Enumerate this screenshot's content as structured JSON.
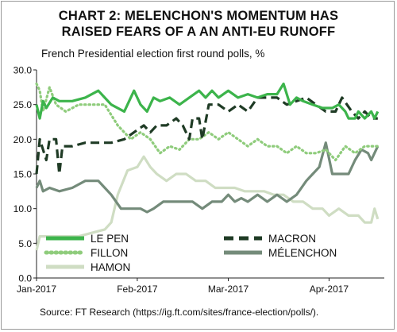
{
  "header": {
    "title_line1": "CHART 2: MELENCHON'S MOMENTUM HAS",
    "title_line2": "RAISED FEARS OF A AN ANTI-EU RUNOFF",
    "subtitle": "French Presidential election first round polls, %"
  },
  "footer": {
    "source": "Source: FT Research (https://ig.ft.com/sites/france-election/polls/)."
  },
  "chart_data": {
    "type": "line",
    "title": "CHART 2: MELENCHON'S MOMENTUM HAS RAISED FEARS OF A AN ANTI-EU RUNOFF",
    "subtitle": "French Presidential election first round polls, %",
    "xlabel": "",
    "ylabel": "",
    "ylim": [
      0,
      30
    ],
    "yticks": [
      "0.0",
      "5.0",
      "10.0",
      "15.0",
      "20.0",
      "25.0",
      "30.0"
    ],
    "xlim": [
      "2017-01-01",
      "2017-04-18"
    ],
    "xticks": [
      {
        "date": "2017-01-01",
        "label": "Jan-2017"
      },
      {
        "date": "2017-02-01",
        "label": "Feb-2017"
      },
      {
        "date": "2017-03-01",
        "label": "Mar-2017"
      },
      {
        "date": "2017-04-01",
        "label": "Apr-2017"
      }
    ],
    "grid": false,
    "legend": "bottom",
    "series": [
      {
        "name": "LE PEN",
        "color": "#3cb44b",
        "style": "solid",
        "points": [
          [
            "2017-01-01",
            25
          ],
          [
            "2017-01-02",
            23
          ],
          [
            "2017-01-03",
            25.5
          ],
          [
            "2017-01-04",
            24.5
          ],
          [
            "2017-01-06",
            26
          ],
          [
            "2017-01-08",
            25.5
          ],
          [
            "2017-01-12",
            25.5
          ],
          [
            "2017-01-16",
            26
          ],
          [
            "2017-01-20",
            27
          ],
          [
            "2017-01-24",
            25
          ],
          [
            "2017-01-28",
            24
          ],
          [
            "2017-01-31",
            27
          ],
          [
            "2017-02-02",
            25
          ],
          [
            "2017-02-04",
            24
          ],
          [
            "2017-02-06",
            26
          ],
          [
            "2017-02-08",
            25.5
          ],
          [
            "2017-02-11",
            26
          ],
          [
            "2017-02-14",
            25
          ],
          [
            "2017-02-17",
            26
          ],
          [
            "2017-02-20",
            27
          ],
          [
            "2017-02-22",
            26
          ],
          [
            "2017-02-24",
            27
          ],
          [
            "2017-02-26",
            26
          ],
          [
            "2017-03-01",
            27
          ],
          [
            "2017-03-04",
            26
          ],
          [
            "2017-03-07",
            26.5
          ],
          [
            "2017-03-10",
            26
          ],
          [
            "2017-03-13",
            26.5
          ],
          [
            "2017-03-16",
            26.5
          ],
          [
            "2017-03-18",
            28
          ],
          [
            "2017-03-20",
            25
          ],
          [
            "2017-03-22",
            26
          ],
          [
            "2017-03-24",
            25.5
          ],
          [
            "2017-03-27",
            25
          ],
          [
            "2017-03-30",
            24.5
          ],
          [
            "2017-04-02",
            24.5
          ],
          [
            "2017-04-04",
            25
          ],
          [
            "2017-04-06",
            24
          ],
          [
            "2017-04-07",
            23
          ],
          [
            "2017-04-09",
            23
          ],
          [
            "2017-04-10",
            24
          ],
          [
            "2017-04-12",
            23
          ],
          [
            "2017-04-14",
            24
          ],
          [
            "2017-04-15",
            23
          ],
          [
            "2017-04-16",
            24
          ]
        ]
      },
      {
        "name": "MACRON",
        "color": "#1f3b25",
        "style": "dashed",
        "points": [
          [
            "2017-01-01",
            15
          ],
          [
            "2017-01-02",
            20
          ],
          [
            "2017-01-04",
            17
          ],
          [
            "2017-01-05",
            20
          ],
          [
            "2017-01-07",
            20
          ],
          [
            "2017-01-08",
            15
          ],
          [
            "2017-01-09",
            19
          ],
          [
            "2017-01-12",
            19
          ],
          [
            "2017-01-16",
            19.5
          ],
          [
            "2017-01-20",
            19.5
          ],
          [
            "2017-01-24",
            19.5
          ],
          [
            "2017-01-28",
            20
          ],
          [
            "2017-01-31",
            21
          ],
          [
            "2017-02-03",
            22
          ],
          [
            "2017-02-05",
            21
          ],
          [
            "2017-02-07",
            22
          ],
          [
            "2017-02-10",
            22
          ],
          [
            "2017-02-13",
            23
          ],
          [
            "2017-02-15",
            22
          ],
          [
            "2017-02-17",
            20
          ],
          [
            "2017-02-18",
            23
          ],
          [
            "2017-02-20",
            23
          ],
          [
            "2017-02-21",
            20
          ],
          [
            "2017-02-23",
            25
          ],
          [
            "2017-02-26",
            25
          ],
          [
            "2017-03-01",
            24
          ],
          [
            "2017-03-04",
            25
          ],
          [
            "2017-03-07",
            24
          ],
          [
            "2017-03-10",
            26
          ],
          [
            "2017-03-13",
            26
          ],
          [
            "2017-03-16",
            26
          ],
          [
            "2017-03-19",
            25
          ],
          [
            "2017-03-22",
            25.5
          ],
          [
            "2017-03-25",
            26
          ],
          [
            "2017-03-28",
            25
          ],
          [
            "2017-03-31",
            24
          ],
          [
            "2017-04-03",
            24
          ],
          [
            "2017-04-05",
            26
          ],
          [
            "2017-04-08",
            24
          ],
          [
            "2017-04-10",
            23
          ],
          [
            "2017-04-12",
            24
          ],
          [
            "2017-04-14",
            23
          ],
          [
            "2017-04-16",
            23
          ]
        ]
      },
      {
        "name": "FILLON",
        "color": "#8fcc7c",
        "style": "dotted",
        "points": [
          [
            "2017-01-01",
            28
          ],
          [
            "2017-01-02",
            27
          ],
          [
            "2017-01-03",
            24
          ],
          [
            "2017-01-05",
            27.5
          ],
          [
            "2017-01-07",
            25
          ],
          [
            "2017-01-10",
            24
          ],
          [
            "2017-01-14",
            25
          ],
          [
            "2017-01-18",
            25
          ],
          [
            "2017-01-22",
            25
          ],
          [
            "2017-01-26",
            22
          ],
          [
            "2017-01-30",
            20
          ],
          [
            "2017-02-02",
            21
          ],
          [
            "2017-02-05",
            20
          ],
          [
            "2017-02-08",
            18
          ],
          [
            "2017-02-11",
            19
          ],
          [
            "2017-02-14",
            18.5
          ],
          [
            "2017-02-17",
            20
          ],
          [
            "2017-02-20",
            20
          ],
          [
            "2017-02-23",
            21
          ],
          [
            "2017-02-26",
            20
          ],
          [
            "2017-03-01",
            21
          ],
          [
            "2017-03-04",
            20
          ],
          [
            "2017-03-07",
            19
          ],
          [
            "2017-03-10",
            20
          ],
          [
            "2017-03-13",
            19
          ],
          [
            "2017-03-16",
            19
          ],
          [
            "2017-03-19",
            18
          ],
          [
            "2017-03-22",
            19
          ],
          [
            "2017-03-25",
            18
          ],
          [
            "2017-03-28",
            18
          ],
          [
            "2017-03-31",
            18.5
          ],
          [
            "2017-04-03",
            17
          ],
          [
            "2017-04-06",
            19
          ],
          [
            "2017-04-09",
            18
          ],
          [
            "2017-04-12",
            19
          ],
          [
            "2017-04-14",
            19
          ],
          [
            "2017-04-16",
            19
          ]
        ]
      },
      {
        "name": "MÉLENCHON",
        "color": "#748b7a",
        "style": "solid",
        "points": [
          [
            "2017-01-01",
            13
          ],
          [
            "2017-01-02",
            14
          ],
          [
            "2017-01-03",
            12.5
          ],
          [
            "2017-01-05",
            13
          ],
          [
            "2017-01-08",
            12.5
          ],
          [
            "2017-01-12",
            13
          ],
          [
            "2017-01-16",
            14
          ],
          [
            "2017-01-20",
            14
          ],
          [
            "2017-01-24",
            12
          ],
          [
            "2017-01-27",
            10
          ],
          [
            "2017-01-30",
            10
          ],
          [
            "2017-02-02",
            10
          ],
          [
            "2017-02-04",
            9.5
          ],
          [
            "2017-02-06",
            10
          ],
          [
            "2017-02-09",
            11
          ],
          [
            "2017-02-12",
            11
          ],
          [
            "2017-02-15",
            11
          ],
          [
            "2017-02-18",
            11
          ],
          [
            "2017-02-21",
            10
          ],
          [
            "2017-02-24",
            11
          ],
          [
            "2017-02-27",
            11
          ],
          [
            "2017-03-01",
            12
          ],
          [
            "2017-03-03",
            11
          ],
          [
            "2017-03-05",
            11.5
          ],
          [
            "2017-03-07",
            11
          ],
          [
            "2017-03-10",
            12
          ],
          [
            "2017-03-13",
            11
          ],
          [
            "2017-03-16",
            12
          ],
          [
            "2017-03-19",
            11
          ],
          [
            "2017-03-22",
            12
          ],
          [
            "2017-03-25",
            14
          ],
          [
            "2017-03-27",
            15
          ],
          [
            "2017-03-29",
            16
          ],
          [
            "2017-03-31",
            19.5
          ],
          [
            "2017-04-02",
            15
          ],
          [
            "2017-04-04",
            15
          ],
          [
            "2017-04-07",
            15
          ],
          [
            "2017-04-09",
            17
          ],
          [
            "2017-04-11",
            18.5
          ],
          [
            "2017-04-13",
            18
          ],
          [
            "2017-04-14",
            17
          ],
          [
            "2017-04-16",
            19
          ]
        ]
      },
      {
        "name": "HAMON",
        "color": "#cfddc3",
        "style": "solid",
        "points": [
          [
            "2017-01-01",
            4
          ],
          [
            "2017-01-02",
            6
          ],
          [
            "2017-01-06",
            6
          ],
          [
            "2017-01-10",
            6
          ],
          [
            "2017-01-14",
            6
          ],
          [
            "2017-01-18",
            6.5
          ],
          [
            "2017-01-22",
            7
          ],
          [
            "2017-01-24",
            8
          ],
          [
            "2017-01-26",
            12
          ],
          [
            "2017-01-29",
            15.5
          ],
          [
            "2017-02-01",
            16
          ],
          [
            "2017-02-03",
            17.5
          ],
          [
            "2017-02-05",
            16
          ],
          [
            "2017-02-07",
            15
          ],
          [
            "2017-02-10",
            14
          ],
          [
            "2017-02-13",
            15
          ],
          [
            "2017-02-16",
            15
          ],
          [
            "2017-02-19",
            14
          ],
          [
            "2017-02-22",
            14
          ],
          [
            "2017-02-25",
            13
          ],
          [
            "2017-02-28",
            13
          ],
          [
            "2017-03-03",
            13
          ],
          [
            "2017-03-06",
            12.5
          ],
          [
            "2017-03-09",
            12.5
          ],
          [
            "2017-03-12",
            12.5
          ],
          [
            "2017-03-15",
            12
          ],
          [
            "2017-03-18",
            12
          ],
          [
            "2017-03-21",
            11
          ],
          [
            "2017-03-24",
            11
          ],
          [
            "2017-03-27",
            10
          ],
          [
            "2017-03-30",
            10
          ],
          [
            "2017-04-01",
            9
          ],
          [
            "2017-04-04",
            10
          ],
          [
            "2017-04-07",
            9
          ],
          [
            "2017-04-10",
            9
          ],
          [
            "2017-04-12",
            8
          ],
          [
            "2017-04-14",
            8
          ],
          [
            "2017-04-15",
            10
          ],
          [
            "2017-04-16",
            8.5
          ]
        ]
      }
    ]
  }
}
